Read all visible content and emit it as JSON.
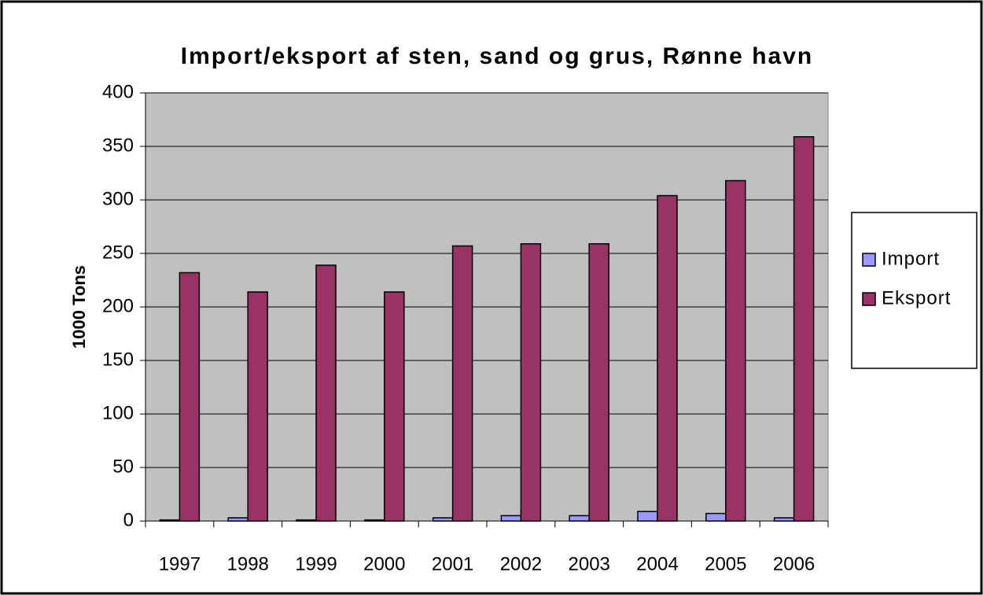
{
  "chart_data": {
    "type": "bar",
    "title": "Import/eksport af sten, sand og grus, Rønne havn",
    "y_label": "1000 Tons",
    "categories": [
      "1997",
      "1998",
      "1999",
      "2000",
      "2001",
      "2002",
      "2003",
      "2004",
      "2005",
      "2006"
    ],
    "series": [
      {
        "name": "Import",
        "color": "#9999ff",
        "values": [
          1,
          3,
          1,
          1,
          3,
          5,
          5,
          9,
          7,
          3
        ]
      },
      {
        "name": "Eksport",
        "color": "#993366",
        "values": [
          232,
          214,
          239,
          214,
          257,
          259,
          259,
          304,
          318,
          359
        ]
      }
    ],
    "ylim": [
      0,
      400
    ],
    "yticks": [
      0,
      50,
      100,
      150,
      200,
      250,
      300,
      350,
      400
    ],
    "grid": true,
    "legend": "right",
    "plot_background": "#c0c0c0"
  }
}
